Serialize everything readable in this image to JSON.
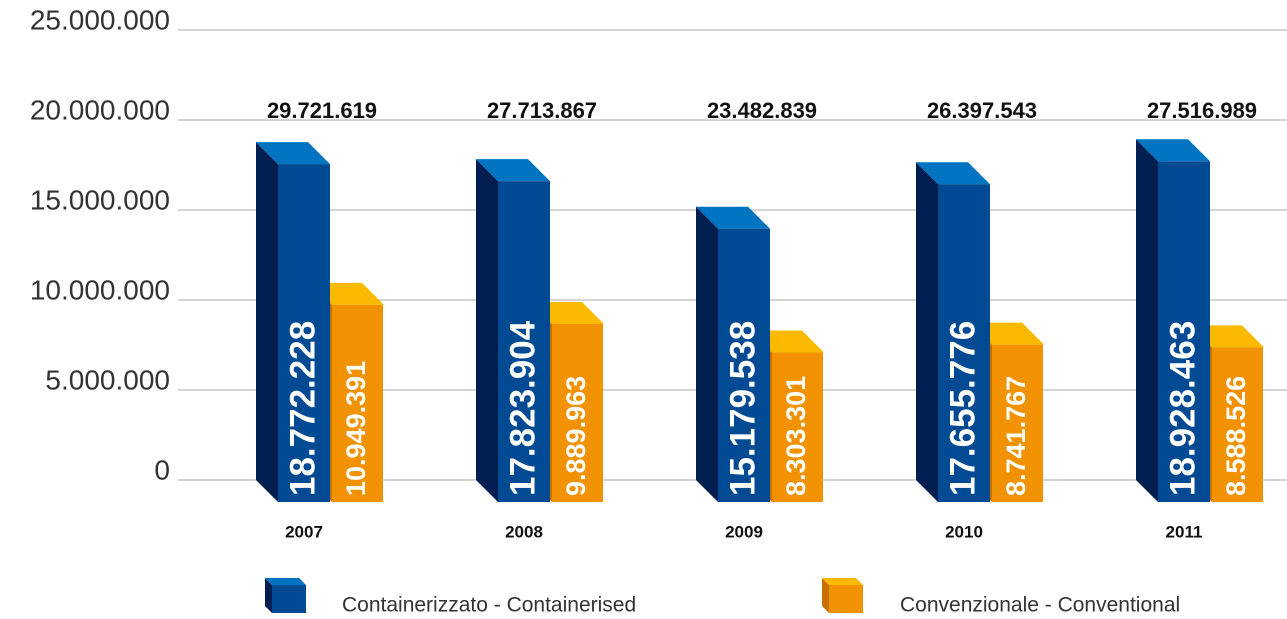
{
  "chart_data": {
    "type": "bar3d",
    "categories": [
      "2007",
      "2008",
      "2009",
      "2010",
      "2011"
    ],
    "series": [
      {
        "name": "Containerizzato - Containerised",
        "color": "#004a93",
        "values": [
          18772228,
          17823904,
          15179538,
          17655776,
          18928463
        ],
        "value_labels": [
          "18.772.228",
          "17.823.904",
          "15.179.538",
          "17.655.776",
          "18.928.463"
        ]
      },
      {
        "name": "Convenzionale - Conventional",
        "color": "#f39200",
        "values": [
          10949391,
          9889963,
          8303301,
          8741767,
          8588526
        ],
        "value_labels": [
          "10.949.391",
          "9.889.963",
          "8.303.301",
          "8.741.767",
          "8.588.526"
        ]
      }
    ],
    "annotations": [
      "29.721.619",
      "27.713.867",
      "23.482.839",
      "26.397.543",
      "27.516.989"
    ],
    "ylim": [
      0,
      25000000
    ],
    "yticks": [
      0,
      {
        "value": 5000000,
        "label": "5.000.000"
      },
      {
        "value": 10000000,
        "label": "10.000.000"
      },
      {
        "value": 15000000,
        "label": "15.000.000"
      },
      {
        "value": 20000000,
        "label": "20.000.000"
      },
      {
        "value": 25000000,
        "label": "25.000.000"
      }
    ],
    "grid": true
  }
}
